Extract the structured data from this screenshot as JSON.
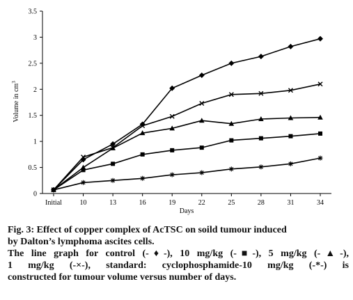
{
  "chart_data": {
    "type": "line",
    "title": "",
    "xlabel": "Days",
    "ylabel": "Volume in cm",
    "ylabel_superscript": "3",
    "categories": [
      "Initial",
      "10",
      "13",
      "16",
      "19",
      "22",
      "25",
      "28",
      "31",
      "34"
    ],
    "ylim": [
      0,
      3.5
    ],
    "yticks": [
      "0",
      "0.5",
      "1",
      "1.5",
      "2",
      "2.5",
      "3",
      "3.5"
    ],
    "grid": false,
    "legend": "none",
    "series": [
      {
        "marker": "diamond",
        "values": [
          0.07,
          0.65,
          0.95,
          1.33,
          2.02,
          2.27,
          2.5,
          2.63,
          2.82,
          2.97
        ]
      },
      {
        "marker": "square",
        "values": [
          0.07,
          0.45,
          0.57,
          0.75,
          0.83,
          0.88,
          1.02,
          1.06,
          1.1,
          1.15
        ]
      },
      {
        "marker": "triangle",
        "values": [
          0.07,
          0.5,
          0.87,
          1.16,
          1.25,
          1.4,
          1.34,
          1.43,
          1.45,
          1.46
        ]
      },
      {
        "marker": "cross",
        "values": [
          0.07,
          0.7,
          0.88,
          1.3,
          1.48,
          1.73,
          1.9,
          1.92,
          1.98,
          2.1
        ]
      },
      {
        "marker": "star",
        "values": [
          0.07,
          0.21,
          0.25,
          0.29,
          0.36,
          0.4,
          0.47,
          0.51,
          0.57,
          0.68
        ]
      }
    ]
  },
  "caption": {
    "line1": "Fig. 3: Effect of copper complex of AcTSC on soild tumour induced",
    "line2": "by Dalton’s lymphoma ascites cells.",
    "line3": "The line graph for control (-♦-), 10 mg/kg (-■-), 5 mg/kg (-▲-),",
    "line4": "1 mg/kg (-×-), standard: cyclophosphamide-10 mg/kg (-*-) is",
    "line5": "constructed for tumour volume versus number of days."
  }
}
